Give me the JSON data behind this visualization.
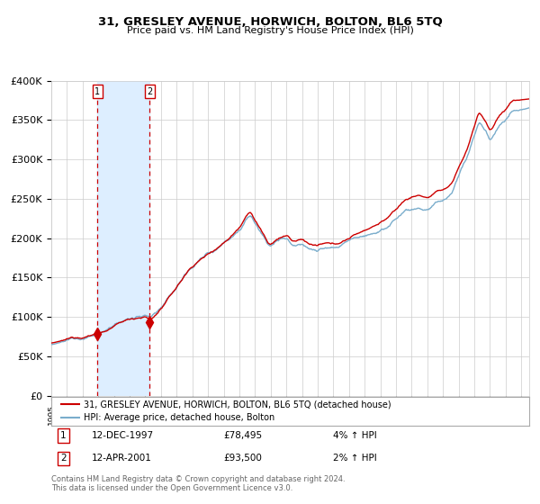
{
  "title": "31, GRESLEY AVENUE, HORWICH, BOLTON, BL6 5TQ",
  "subtitle": "Price paid vs. HM Land Registry's House Price Index (HPI)",
  "ylabel_ticks": [
    "£0",
    "£50K",
    "£100K",
    "£150K",
    "£200K",
    "£250K",
    "£300K",
    "£350K",
    "£400K"
  ],
  "ytick_values": [
    0,
    50000,
    100000,
    150000,
    200000,
    250000,
    300000,
    350000,
    400000
  ],
  "ylim": [
    0,
    400000
  ],
  "xlim_start": 1995.0,
  "xlim_end": 2025.5,
  "sale1_x": 1997.95,
  "sale1_y": 78495,
  "sale2_x": 2001.28,
  "sale2_y": 93500,
  "vline1_x": 1997.95,
  "vline2_x": 2001.28,
  "shade_x1": 1997.95,
  "shade_x2": 2001.28,
  "legend_line1": "31, GRESLEY AVENUE, HORWICH, BOLTON, BL6 5TQ (detached house)",
  "legend_line2": "HPI: Average price, detached house, Bolton",
  "line_color_red": "#cc0000",
  "line_color_blue": "#7aadcc",
  "shade_color": "#ddeeff",
  "vline_color": "#cc0000",
  "grid_color": "#cccccc",
  "bg_color": "#ffffff",
  "annotation1_date": "12-DEC-1997",
  "annotation1_price": "£78,495",
  "annotation1_hpi": "4% ↑ HPI",
  "annotation2_date": "12-APR-2001",
  "annotation2_price": "£93,500",
  "annotation2_hpi": "2% ↑ HPI",
  "footer": "Contains HM Land Registry data © Crown copyright and database right 2024.\nThis data is licensed under the Open Government Licence v3.0.",
  "hpi_keypoints": [
    [
      1995.0,
      63000
    ],
    [
      1996.0,
      66000
    ],
    [
      1997.0,
      70000
    ],
    [
      1997.95,
      75000
    ],
    [
      1998.5,
      79000
    ],
    [
      1999.0,
      83000
    ],
    [
      1999.5,
      88000
    ],
    [
      2000.0,
      91000
    ],
    [
      2001.0,
      95000
    ],
    [
      2001.28,
      92000
    ],
    [
      2002.0,
      105000
    ],
    [
      2003.0,
      130000
    ],
    [
      2004.0,
      155000
    ],
    [
      2005.0,
      170000
    ],
    [
      2006.0,
      185000
    ],
    [
      2007.0,
      205000
    ],
    [
      2007.7,
      225000
    ],
    [
      2008.0,
      215000
    ],
    [
      2008.5,
      200000
    ],
    [
      2009.0,
      185000
    ],
    [
      2009.5,
      192000
    ],
    [
      2010.0,
      195000
    ],
    [
      2010.5,
      188000
    ],
    [
      2011.0,
      190000
    ],
    [
      2011.5,
      185000
    ],
    [
      2012.0,
      183000
    ],
    [
      2012.5,
      184000
    ],
    [
      2013.0,
      182000
    ],
    [
      2013.5,
      185000
    ],
    [
      2014.0,
      190000
    ],
    [
      2015.0,
      200000
    ],
    [
      2016.0,
      210000
    ],
    [
      2017.0,
      225000
    ],
    [
      2017.5,
      235000
    ],
    [
      2018.0,
      240000
    ],
    [
      2018.5,
      242000
    ],
    [
      2019.0,
      240000
    ],
    [
      2019.5,
      245000
    ],
    [
      2020.0,
      248000
    ],
    [
      2020.5,
      255000
    ],
    [
      2021.0,
      275000
    ],
    [
      2021.5,
      295000
    ],
    [
      2022.0,
      325000
    ],
    [
      2022.3,
      340000
    ],
    [
      2022.7,
      330000
    ],
    [
      2023.0,
      320000
    ],
    [
      2023.5,
      335000
    ],
    [
      2024.0,
      345000
    ],
    [
      2024.5,
      355000
    ],
    [
      2025.0,
      355000
    ]
  ]
}
